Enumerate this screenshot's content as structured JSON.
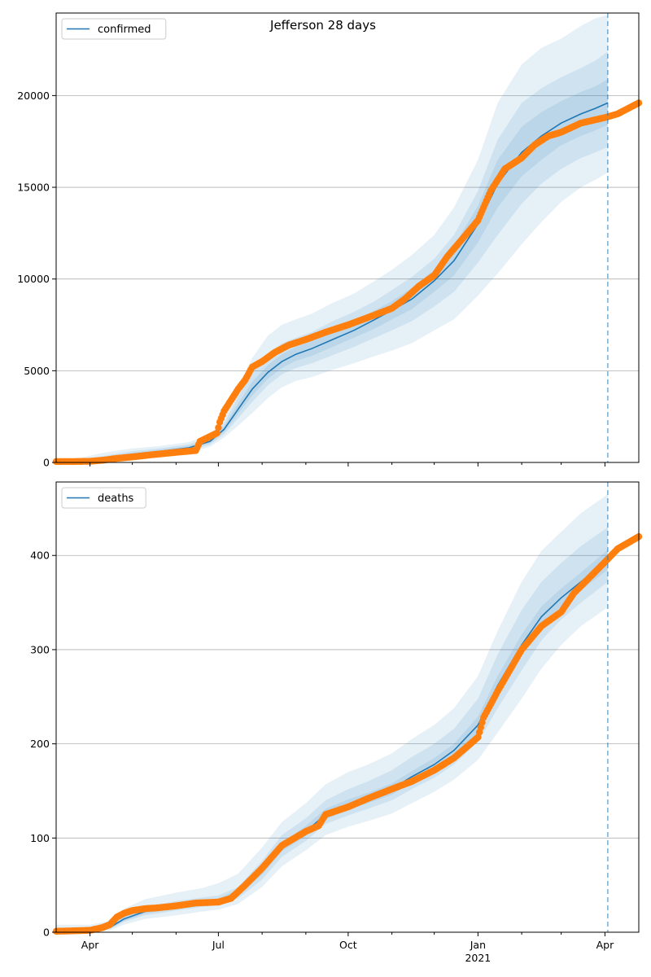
{
  "title": "Jefferson 28 days",
  "colors": {
    "model_line": "#1f77b4",
    "observed_points": "#ff7f0e",
    "band": "#1f77b4",
    "vline": "#1f77b4",
    "grid": "#b0b0b0"
  },
  "x_axis": {
    "start": "2020-03-08",
    "end": "2021-04-25",
    "ticks": [
      {
        "date": "2020-04-01",
        "label": "Apr",
        "sub": ""
      },
      {
        "date": "2020-07-01",
        "label": "Jul",
        "sub": ""
      },
      {
        "date": "2020-10-01",
        "label": "Oct",
        "sub": ""
      },
      {
        "date": "2021-01-01",
        "label": "Jan",
        "sub": "2021"
      },
      {
        "date": "2021-04-01",
        "label": "Apr",
        "sub": ""
      }
    ],
    "forecast_start": "2021-04-03"
  },
  "chart_data": [
    {
      "type": "line",
      "legend": "confirmed",
      "legend_position": "upper left",
      "grid": "horizontal",
      "ylim": [
        0,
        24500
      ],
      "yticks": [
        0,
        5000,
        10000,
        15000,
        20000
      ],
      "ytick_labels": [
        "0",
        "5000",
        "10000",
        "15000",
        "20000"
      ],
      "model": {
        "x": [
          "2020-03-08",
          "2020-03-25",
          "2020-04-10",
          "2020-05-01",
          "2020-05-20",
          "2020-06-10",
          "2020-06-25",
          "2020-07-05",
          "2020-07-15",
          "2020-07-25",
          "2020-08-05",
          "2020-08-15",
          "2020-08-25",
          "2020-09-05",
          "2020-09-20",
          "2020-10-05",
          "2020-10-20",
          "2020-11-01",
          "2020-11-15",
          "2020-12-01",
          "2020-12-15",
          "2021-01-01",
          "2021-01-15",
          "2021-02-01",
          "2021-02-15",
          "2021-03-01",
          "2021-03-15",
          "2021-03-25",
          "2021-04-03"
        ],
        "y": [
          50,
          60,
          200,
          450,
          600,
          800,
          1150,
          1800,
          2900,
          4000,
          4900,
          5500,
          5900,
          6200,
          6700,
          7200,
          7800,
          8300,
          8900,
          9900,
          11000,
          13000,
          15200,
          16900,
          17800,
          18500,
          19000,
          19300,
          19600
        ],
        "bands": [
          {
            "lower": [
              0,
              0,
              60,
              260,
              380,
              540,
              850,
              1350,
              2000,
              2700,
              3500,
              4100,
              4450,
              4650,
              5050,
              5400,
              5800,
              6100,
              6500,
              7200,
              7800,
              9100,
              10300,
              11900,
              13100,
              14200,
              15000,
              15400,
              15800
            ],
            "upper": [
              150,
              250,
              520,
              770,
              890,
              1110,
              1530,
              2350,
              4100,
              5700,
              6900,
              7500,
              7800,
              8100,
              8700,
              9200,
              9900,
              10500,
              11300,
              12400,
              13900,
              16500,
              19600,
              21700,
              22600,
              23100,
              23800,
              24200,
              24400
            ]
          },
          {
            "lower": [
              20,
              30,
              110,
              330,
              460,
              640,
              970,
              1530,
              2400,
              3300,
              4200,
              4800,
              5150,
              5400,
              5850,
              6300,
              6800,
              7200,
              7700,
              8500,
              9300,
              10900,
              12400,
              14100,
              15200,
              16000,
              16600,
              16900,
              17200
            ],
            "upper": [
              100,
              150,
              340,
              620,
              770,
              990,
              1370,
              2140,
              3600,
              4900,
              5900,
              6500,
              6800,
              7100,
              7700,
              8200,
              8800,
              9400,
              10100,
              11100,
              12400,
              14800,
              17600,
              19600,
              20400,
              21000,
              21500,
              21900,
              22400
            ]
          },
          {
            "lower": [
              35,
              45,
              160,
              400,
              530,
              720,
              1060,
              1660,
              2650,
              3650,
              4550,
              5150,
              5550,
              5800,
              6300,
              6800,
              7300,
              7800,
              8350,
              9300,
              10200,
              12000,
              13900,
              15600,
              16500,
              17300,
              17800,
              18100,
              18400
            ],
            "upper": [
              70,
              90,
              260,
              530,
              690,
              900,
              1260,
              1960,
              3200,
              4400,
              5300,
              5900,
              6300,
              6600,
              7100,
              7600,
              8300,
              8800,
              9500,
              10500,
              11800,
              14000,
              16500,
              18300,
              19100,
              19700,
              20200,
              20500,
              20900
            ]
          }
        ]
      },
      "observed": {
        "x": [
          "2020-03-08",
          "2020-03-20",
          "2020-04-01",
          "2020-04-10",
          "2020-04-20",
          "2020-05-01",
          "2020-05-15",
          "2020-06-01",
          "2020-06-15",
          "2020-06-18",
          "2020-06-30",
          "2020-07-02",
          "2020-07-05",
          "2020-07-10",
          "2020-07-15",
          "2020-07-20",
          "2020-07-25",
          "2020-08-01",
          "2020-08-10",
          "2020-08-20",
          "2020-09-01",
          "2020-09-15",
          "2020-10-01",
          "2020-10-15",
          "2020-11-01",
          "2020-11-10",
          "2020-11-20",
          "2020-12-01",
          "2020-12-10",
          "2020-12-20",
          "2021-01-01",
          "2021-01-10",
          "2021-01-20",
          "2021-02-01",
          "2021-02-10",
          "2021-02-20",
          "2021-03-01",
          "2021-03-15",
          "2021-04-01",
          "2021-04-10",
          "2021-04-25"
        ],
        "y": [
          50,
          50,
          60,
          120,
          220,
          300,
          420,
          550,
          650,
          1150,
          1600,
          2200,
          2800,
          3400,
          4000,
          4500,
          5200,
          5500,
          6000,
          6400,
          6700,
          7100,
          7500,
          7900,
          8400,
          8900,
          9600,
          10200,
          11200,
          12100,
          13200,
          14800,
          16000,
          16600,
          17300,
          17800,
          18000,
          18500,
          18800,
          19000,
          19600
        ]
      }
    },
    {
      "type": "line",
      "legend": "deaths",
      "legend_position": "upper left",
      "grid": "horizontal",
      "ylim": [
        0,
        478
      ],
      "yticks": [
        0,
        100,
        200,
        300,
        400
      ],
      "ytick_labels": [
        "0",
        "100",
        "200",
        "300",
        "400"
      ],
      "model": {
        "x": [
          "2020-03-08",
          "2020-04-01",
          "2020-04-15",
          "2020-04-25",
          "2020-05-10",
          "2020-06-01",
          "2020-06-20",
          "2020-07-01",
          "2020-07-15",
          "2020-08-01",
          "2020-08-15",
          "2020-09-01",
          "2020-09-15",
          "2020-10-01",
          "2020-10-15",
          "2020-11-01",
          "2020-11-15",
          "2020-12-01",
          "2020-12-15",
          "2021-01-01",
          "2021-01-15",
          "2021-02-01",
          "2021-02-15",
          "2021-03-01",
          "2021-03-15",
          "2021-04-03"
        ],
        "y": [
          1,
          2,
          5,
          14,
          22,
          28,
          32,
          34,
          42,
          65,
          90,
          107,
          125,
          135,
          142,
          152,
          165,
          178,
          193,
          220,
          262,
          305,
          335,
          355,
          372,
          395
        ],
        "bands": [
          {
            "lower": [
              0,
              0,
              2,
              8,
              14,
              18,
              22,
              24,
              30,
              48,
              70,
              87,
              103,
              112,
              118,
              126,
              137,
              149,
              162,
              183,
              212,
              248,
              280,
              305,
              325,
              345
            ],
            "upper": [
              8,
              8,
              12,
              25,
              35,
              42,
              47,
              52,
              62,
              90,
              117,
              137,
              157,
              170,
              178,
              190,
              205,
              220,
              238,
              272,
              320,
              372,
              405,
              425,
              445,
              465
            ]
          },
          {
            "lower": [
              0,
              1,
              3,
              11,
              18,
              23,
              27,
              29,
              36,
              56,
              80,
              97,
              115,
              124,
              131,
              140,
              152,
              164,
              178,
              202,
              238,
              278,
              310,
              332,
              350,
              372
            ],
            "upper": [
              4,
              4,
              8,
              18,
              27,
              33,
              37,
              39,
              48,
              76,
              103,
              121,
              140,
              152,
              160,
              172,
              186,
              200,
              216,
              248,
              295,
              342,
              372,
              392,
              410,
              430
            ]
          },
          {
            "lower": [
              0,
              1,
              4,
              12,
              20,
              25,
              30,
              32,
              39,
              61,
              86,
              102,
              120,
              130,
              137,
              146,
              159,
              172,
              187,
              212,
              252,
              294,
              325,
              346,
              363,
              385
            ],
            "upper": [
              2,
              3,
              6,
              16,
              24,
              31,
              34,
              36,
              45,
              70,
              95,
              113,
              131,
              141,
              148,
              158,
              171,
              185,
              200,
              229,
              272,
              316,
              346,
              365,
              382,
              406
            ]
          }
        ]
      },
      "observed": {
        "x": [
          "2020-03-08",
          "2020-04-01",
          "2020-04-10",
          "2020-04-15",
          "2020-04-20",
          "2020-04-25",
          "2020-05-01",
          "2020-05-10",
          "2020-05-20",
          "2020-06-01",
          "2020-06-15",
          "2020-07-01",
          "2020-07-10",
          "2020-07-20",
          "2020-08-01",
          "2020-08-15",
          "2020-09-01",
          "2020-09-10",
          "2020-09-15",
          "2020-10-01",
          "2020-10-15",
          "2020-11-01",
          "2020-11-15",
          "2020-12-01",
          "2020-12-15",
          "2021-01-01",
          "2021-01-05",
          "2021-01-15",
          "2021-02-01",
          "2021-02-15",
          "2021-03-01",
          "2021-03-10",
          "2021-03-20",
          "2021-04-01",
          "2021-04-10",
          "2021-04-25"
        ],
        "y": [
          1,
          2,
          5,
          8,
          16,
          20,
          23,
          25,
          26,
          28,
          31,
          32,
          36,
          50,
          68,
          92,
          107,
          113,
          125,
          133,
          142,
          152,
          160,
          172,
          185,
          207,
          228,
          256,
          300,
          325,
          340,
          360,
          375,
          393,
          407,
          420
        ]
      }
    }
  ]
}
